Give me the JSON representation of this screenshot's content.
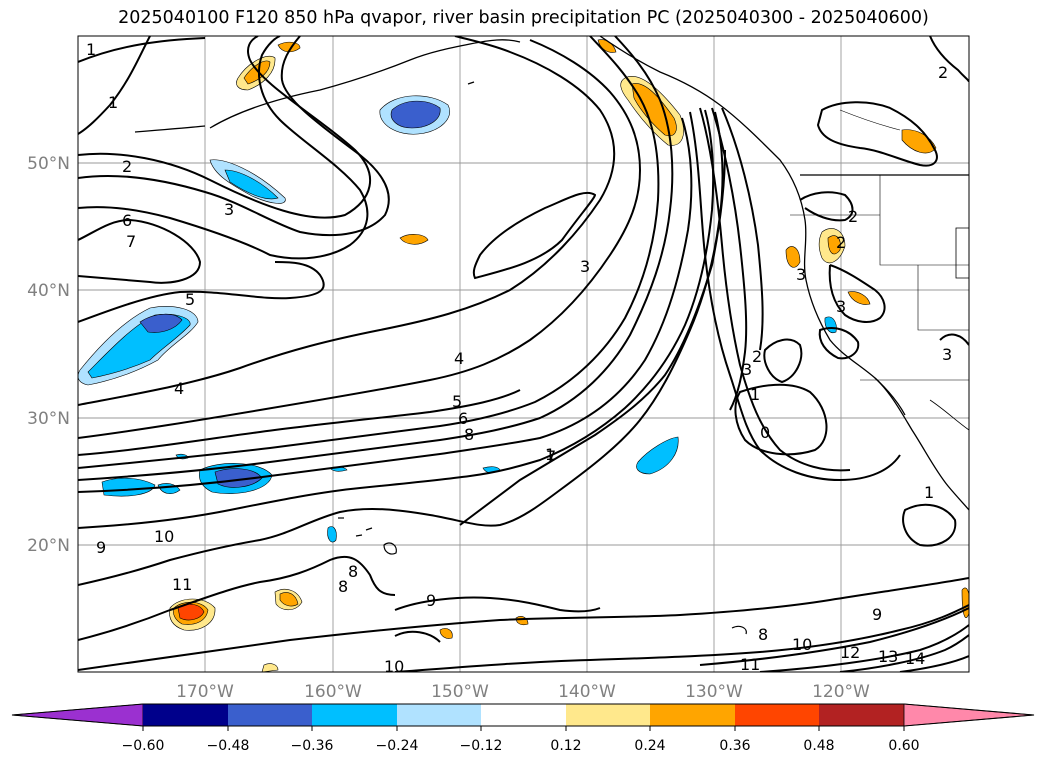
{
  "title": "2025040100 F120 850 hPa qvapor, river basin precipitation PC (2025040300 - 2025040600)",
  "axes": {
    "lat_labels": [
      "50°N",
      "40°N",
      "30°N",
      "20°N"
    ],
    "lon_labels": [
      "170°W",
      "160°W",
      "150°W",
      "140°W",
      "130°W",
      "120°W"
    ]
  },
  "contour_labels": [
    "1",
    "1",
    "2",
    "3",
    "6",
    "7",
    "5",
    "4",
    "3",
    "4",
    "5",
    "6",
    "8",
    "7",
    "10",
    "9",
    "11",
    "8",
    "8",
    "9",
    "10",
    "11",
    "10",
    "12",
    "13",
    "14",
    "9",
    "8",
    "1",
    "2",
    "3",
    "3",
    "2",
    "1",
    "3",
    "2",
    "3",
    "2",
    "1",
    "0"
  ],
  "colorbar": {
    "tick_labels": [
      "−0.60",
      "−0.48",
      "−0.36",
      "−0.24",
      "−0.12",
      "0.12",
      "0.24",
      "0.36",
      "0.48",
      "0.60"
    ],
    "colors": [
      "#9b30d0",
      "#00008b",
      "#3a5fcd",
      "#00bfff",
      "#b0e2ff",
      "#ffffff",
      "#ffe88c",
      "#ffa500",
      "#ff4500",
      "#b22222",
      "#ff88aa"
    ]
  },
  "map_colors": {
    "neg_light": "#b0e2ff",
    "neg_mid": "#00bfff",
    "neg_dark": "#3a5fcd",
    "pos_light": "#ffe88c",
    "pos_mid": "#ffa500",
    "pos_dark": "#ff4500"
  }
}
